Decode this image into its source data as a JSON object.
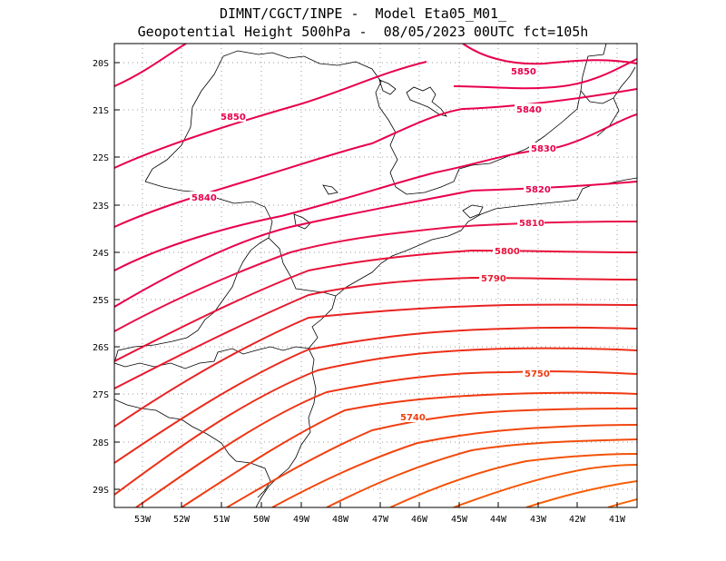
{
  "title": {
    "line1": "DIMNT/CGCT/INPE -  Model Eta05_M01_",
    "line2": "Geopotential Height 500hPa -  08/05/2023 00UTC fct=105h"
  },
  "axes": {
    "lat_labels": [
      "20S",
      "21S",
      "22S",
      "23S",
      "24S",
      "25S",
      "26S",
      "27S",
      "28S",
      "29S"
    ],
    "lon_labels": [
      "53W",
      "52W",
      "51W",
      "50W",
      "49W",
      "48W",
      "47W",
      "46W",
      "45W",
      "44W",
      "43W",
      "42W",
      "41W"
    ]
  },
  "contour_labels": [
    {
      "text": "5850",
      "color": "#e8004c"
    },
    {
      "text": "5850",
      "color": "#e8004c"
    },
    {
      "text": "5840",
      "color": "#e8004c"
    },
    {
      "text": "5840",
      "color": "#e8004c"
    },
    {
      "text": "5830",
      "color": "#e8004c"
    },
    {
      "text": "5820",
      "color": "#e8004c"
    },
    {
      "text": "5810",
      "color": "#e8104a"
    },
    {
      "text": "5800",
      "color": "#e8103a"
    },
    {
      "text": "5790",
      "color": "#e81a30"
    },
    {
      "text": "5750",
      "color": "#f03a12"
    },
    {
      "text": "5740",
      "color": "#f04010"
    }
  ]
}
